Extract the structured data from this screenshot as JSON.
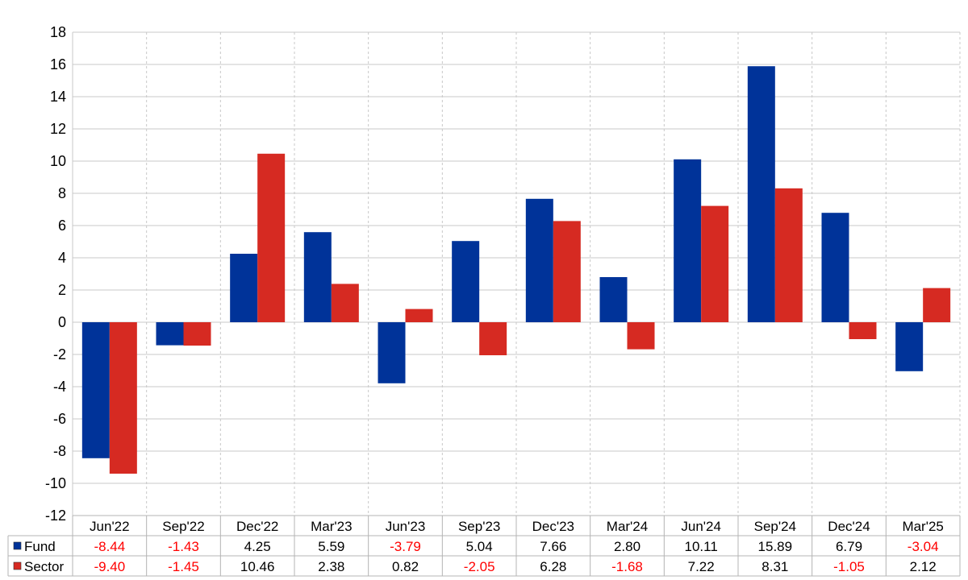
{
  "chart_data": {
    "type": "bar",
    "categories": [
      "Jun'22",
      "Sep'22",
      "Dec'22",
      "Mar'23",
      "Jun'23",
      "Sep'23",
      "Dec'23",
      "Mar'24",
      "Jun'24",
      "Sep'24",
      "Dec'24",
      "Mar'25"
    ],
    "series": [
      {
        "name": "Fund",
        "color": "#003399",
        "values": [
          -8.44,
          -1.43,
          4.25,
          5.59,
          -3.79,
          5.04,
          7.66,
          2.8,
          10.11,
          15.89,
          6.79,
          -3.04
        ],
        "labels": [
          "-8.44",
          "-1.43",
          "4.25",
          "5.59",
          "-3.79",
          "5.04",
          "7.66",
          "2.80",
          "10.11",
          "15.89",
          "6.79",
          "-3.04"
        ]
      },
      {
        "name": "Sector",
        "color": "#d62a22",
        "values": [
          -9.4,
          -1.45,
          10.46,
          2.38,
          0.82,
          -2.05,
          6.28,
          -1.68,
          7.22,
          8.31,
          -1.05,
          2.12
        ],
        "labels": [
          "-9.40",
          "-1.45",
          "10.46",
          "2.38",
          "0.82",
          "-2.05",
          "6.28",
          "-1.68",
          "7.22",
          "8.31",
          "-1.05",
          "2.12"
        ]
      }
    ],
    "yticks": [
      "18",
      "16",
      "14",
      "12",
      "10",
      "8",
      "6",
      "4",
      "2",
      "0",
      "-2",
      "-4",
      "-6",
      "-8",
      "-10",
      "-12"
    ],
    "ylim": [
      -12,
      18
    ],
    "grid": true,
    "legend": "data-table-left",
    "negative_color": "#ff0000",
    "positive_color": "#000000"
  }
}
